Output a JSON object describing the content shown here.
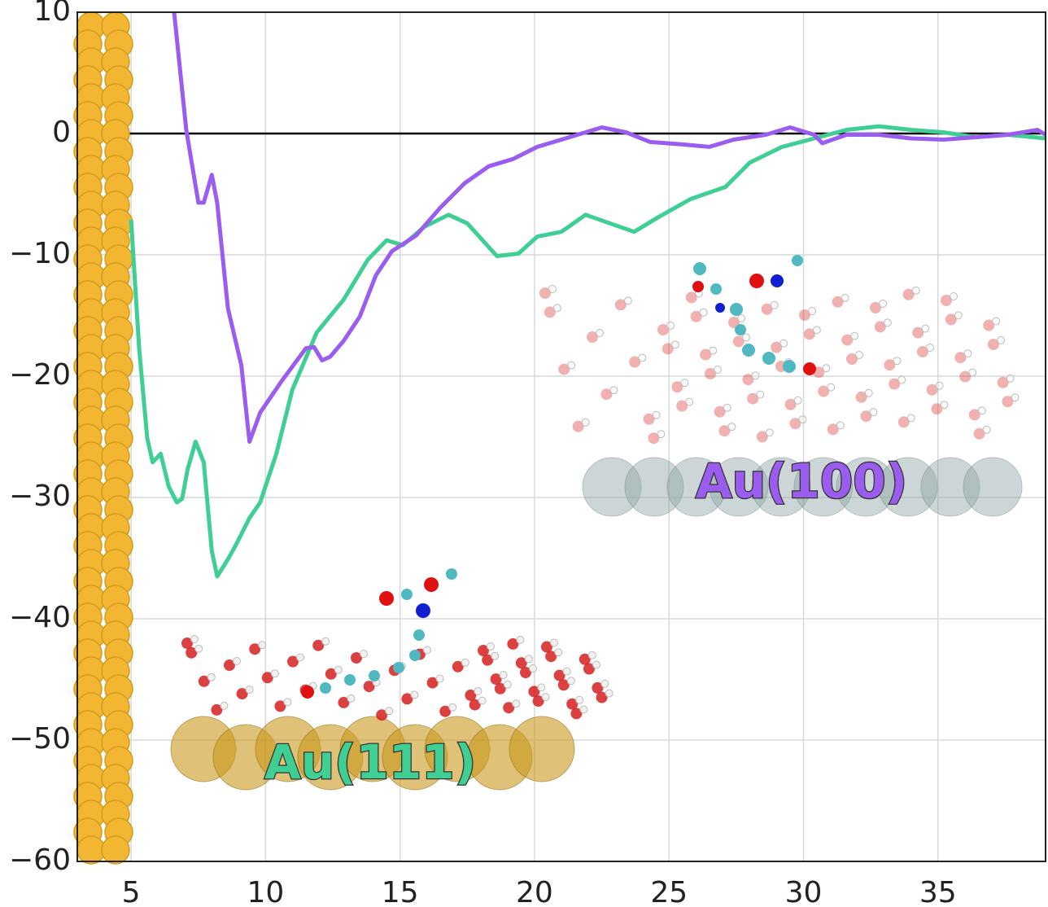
{
  "chart_data": {
    "type": "line",
    "xlim": [
      3,
      39
    ],
    "ylim": [
      -60,
      10
    ],
    "xticks": [
      5,
      10,
      15,
      20,
      25,
      30,
      35
    ],
    "yticks": [
      {
        "value": -60,
        "label": "−60"
      },
      {
        "value": -50,
        "label": "−50"
      },
      {
        "value": -40,
        "label": "−40"
      },
      {
        "value": -30,
        "label": "−30"
      },
      {
        "value": -20,
        "label": "−20"
      },
      {
        "value": -10,
        "label": "−10"
      },
      0,
      10
    ],
    "grid": true,
    "series": [
      {
        "name": "Au(111)",
        "color": "#3fcf95",
        "x": [
          5.0,
          5.3,
          5.6,
          5.8,
          6.1,
          6.4,
          6.7,
          6.9,
          7.1,
          7.4,
          7.7,
          8.0,
          8.2,
          8.6,
          8.9,
          9.4,
          9.8,
          10.4,
          11.0,
          11.9,
          12.9,
          13.8,
          14.5,
          15.1,
          15.9,
          16.8,
          17.5,
          18.6,
          19.4,
          20.1,
          21.0,
          21.9,
          22.8,
          23.7,
          24.6,
          25.8,
          27.1,
          28.0,
          29.2,
          30.4,
          31.6,
          32.8,
          34.0,
          35.2,
          36.4,
          37.6,
          39.0
        ],
        "values": [
          -7.1,
          -17.7,
          -25.1,
          -27.1,
          -26.4,
          -29.1,
          -30.4,
          -30.1,
          -27.7,
          -25.4,
          -27.1,
          -34.4,
          -36.5,
          -35.1,
          -33.9,
          -31.7,
          -30.4,
          -26.4,
          -21.1,
          -16.4,
          -13.7,
          -10.4,
          -8.8,
          -9.2,
          -7.7,
          -6.7,
          -7.4,
          -10.1,
          -9.9,
          -8.5,
          -8.1,
          -6.7,
          -7.4,
          -8.1,
          -6.9,
          -5.4,
          -4.4,
          -2.4,
          -1.1,
          -0.4,
          0.3,
          0.6,
          0.3,
          0.1,
          -0.3,
          -0.1,
          -0.4
        ]
      },
      {
        "name": "Au(100)",
        "color": "#9b5cf0",
        "x": [
          6.6,
          7.05,
          7.5,
          7.7,
          8.0,
          8.2,
          8.6,
          9.1,
          9.4,
          9.8,
          10.6,
          11.5,
          11.8,
          12.1,
          12.4,
          12.9,
          13.5,
          14.1,
          14.7,
          15.6,
          16.5,
          17.4,
          18.3,
          19.2,
          20.1,
          21.3,
          22.5,
          23.4,
          24.3,
          25.5,
          26.5,
          27.4,
          28.6,
          29.5,
          30.4,
          30.7,
          31.6,
          32.8,
          34.0,
          35.2,
          36.4,
          37.6,
          38.7,
          39.0
        ],
        "values": [
          10,
          0.3,
          -5.7,
          -5.7,
          -3.4,
          -5.7,
          -14.4,
          -19.1,
          -25.4,
          -23.0,
          -20.4,
          -17.7,
          -17.6,
          -18.7,
          -18.4,
          -17.1,
          -15.1,
          -11.7,
          -9.7,
          -8.4,
          -6.1,
          -4.1,
          -2.7,
          -2.1,
          -1.1,
          -0.3,
          0.5,
          0.1,
          -0.7,
          -0.9,
          -1.1,
          -0.5,
          -0.1,
          0.5,
          -0.1,
          -0.8,
          -0.1,
          -0.1,
          -0.4,
          -0.5,
          -0.3,
          -0.1,
          0.3,
          -0.1
        ]
      }
    ]
  }
}
